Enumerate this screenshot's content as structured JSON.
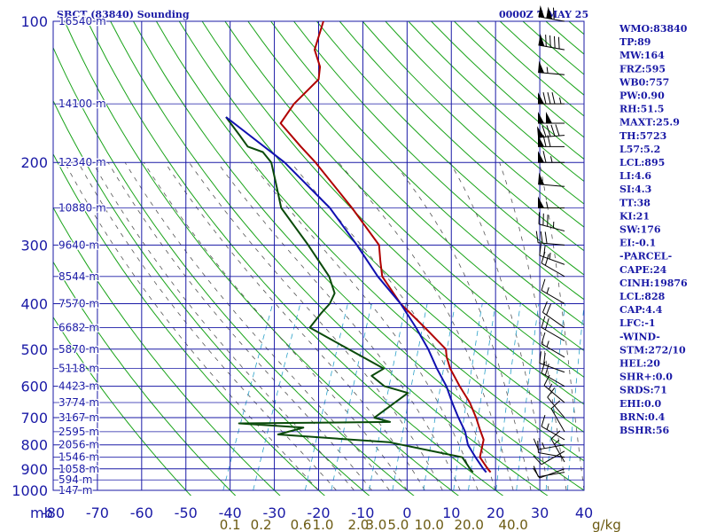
{
  "chart_data": {
    "type": "line",
    "title": "SBCT (83840) Sounding",
    "valid_time": "0000Z  7 MAY 25",
    "p_range": [
      1000,
      100
    ],
    "t_range": [
      -80,
      40
    ],
    "pressure_ticks": [
      {
        "p": 100,
        "label": "100"
      },
      {
        "p": 200,
        "label": "200"
      },
      {
        "p": 300,
        "label": "300"
      },
      {
        "p": 400,
        "label": "400"
      },
      {
        "p": 500,
        "label": "500"
      },
      {
        "p": 600,
        "label": "600"
      },
      {
        "p": 700,
        "label": "700"
      },
      {
        "p": 800,
        "label": "800"
      },
      {
        "p": 900,
        "label": "900"
      },
      {
        "p": 1000,
        "label": "1000"
      }
    ],
    "pressure_unit_label": "mb",
    "temperature_ticks": [
      {
        "t": -80,
        "label": "-80"
      },
      {
        "t": -70,
        "label": "-70"
      },
      {
        "t": -60,
        "label": "-60"
      },
      {
        "t": -50,
        "label": "-50"
      },
      {
        "t": -40,
        "label": "-40"
      },
      {
        "t": -30,
        "label": "-30"
      },
      {
        "t": -20,
        "label": "-20"
      },
      {
        "t": -10,
        "label": "-10"
      },
      {
        "t": 0,
        "label": "0"
      },
      {
        "t": 10,
        "label": "10"
      },
      {
        "t": 20,
        "label": "20"
      },
      {
        "t": 30,
        "label": "30"
      },
      {
        "t": 40,
        "label": "40"
      }
    ],
    "height_labels": [
      {
        "p": 100,
        "label": "16540 m"
      },
      {
        "p": 150,
        "label": "14100 m"
      },
      {
        "p": 200,
        "label": "12340 m"
      },
      {
        "p": 250,
        "label": "10880 m"
      },
      {
        "p": 300,
        "label": "9640 m"
      },
      {
        "p": 350,
        "label": "8544 m"
      },
      {
        "p": 400,
        "label": "7570 m"
      },
      {
        "p": 450,
        "label": "6682 m"
      },
      {
        "p": 500,
        "label": "5870 m"
      },
      {
        "p": 550,
        "label": "5118 m"
      },
      {
        "p": 600,
        "label": "4423 m"
      },
      {
        "p": 650,
        "label": "3774 m"
      },
      {
        "p": 700,
        "label": "3167 m"
      },
      {
        "p": 750,
        "label": "2595 m"
      },
      {
        "p": 800,
        "label": "2056 m"
      },
      {
        "p": 850,
        "label": "1546 m"
      },
      {
        "p": 900,
        "label": "1058 m"
      },
      {
        "p": 950,
        "label": "594 m"
      },
      {
        "p": 1000,
        "label": "147 m"
      }
    ],
    "mixing_ratio_labels": [
      {
        "t": -40,
        "label": "0.1"
      },
      {
        "t": -33,
        "label": "0.2"
      },
      {
        "t": -24,
        "label": "0.6"
      },
      {
        "t": -19,
        "label": "1.0"
      },
      {
        "t": -11,
        "label": "2.0"
      },
      {
        "t": -7,
        "label": "3.0"
      },
      {
        "t": -2,
        "label": "5.0"
      },
      {
        "t": 5,
        "label": "10.0"
      },
      {
        "t": 14,
        "label": "20.0"
      },
      {
        "t": 24,
        "label": "40.0"
      }
    ],
    "mixing_ratio_unit": "g/kg",
    "series": [
      {
        "color": "#b00000",
        "points": [
          {
            "p": 100,
            "t": -68
          },
          {
            "p": 115,
            "t": -67
          },
          {
            "p": 125,
            "t": -64
          },
          {
            "p": 133,
            "t": -63
          },
          {
            "p": 150,
            "t": -66
          },
          {
            "p": 165,
            "t": -67
          },
          {
            "p": 185,
            "t": -60
          },
          {
            "p": 200,
            "t": -55
          },
          {
            "p": 250,
            "t": -42
          },
          {
            "p": 300,
            "t": -32
          },
          {
            "p": 325,
            "t": -30
          },
          {
            "p": 350,
            "t": -28
          },
          {
            "p": 400,
            "t": -21
          },
          {
            "p": 450,
            "t": -13
          },
          {
            "p": 500,
            "t": -6
          },
          {
            "p": 520,
            "t": -5
          },
          {
            "p": 550,
            "t": -3
          },
          {
            "p": 600,
            "t": 1
          },
          {
            "p": 650,
            "t": 5
          },
          {
            "p": 700,
            "t": 8
          },
          {
            "p": 740,
            "t": 10
          },
          {
            "p": 780,
            "t": 12
          },
          {
            "p": 850,
            "t": 13
          },
          {
            "p": 900,
            "t": 16
          },
          {
            "p": 915,
            "t": 17
          }
        ]
      },
      {
        "color": "#0a4a0a",
        "points": [
          {
            "p": 160,
            "t": -80
          },
          {
            "p": 175,
            "t": -75
          },
          {
            "p": 185,
            "t": -72
          },
          {
            "p": 190,
            "t": -68
          },
          {
            "p": 200,
            "t": -65
          },
          {
            "p": 220,
            "t": -62
          },
          {
            "p": 250,
            "t": -58
          },
          {
            "p": 300,
            "t": -48
          },
          {
            "p": 350,
            "t": -40
          },
          {
            "p": 380,
            "t": -37
          },
          {
            "p": 400,
            "t": -37
          },
          {
            "p": 420,
            "t": -38
          },
          {
            "p": 450,
            "t": -39
          },
          {
            "p": 500,
            "t": -28
          },
          {
            "p": 550,
            "t": -18
          },
          {
            "p": 570,
            "t": -20
          },
          {
            "p": 600,
            "t": -16
          },
          {
            "p": 620,
            "t": -10
          },
          {
            "p": 700,
            "t": -15
          },
          {
            "p": 715,
            "t": -11
          },
          {
            "p": 720,
            "t": -45
          },
          {
            "p": 735,
            "t": -30
          },
          {
            "p": 760,
            "t": -35
          },
          {
            "p": 790,
            "t": -9
          },
          {
            "p": 850,
            "t": 9
          },
          {
            "p": 900,
            "t": 12
          },
          {
            "p": 915,
            "t": 13
          }
        ]
      },
      {
        "color": "#1010b0",
        "points": [
          {
            "p": 160,
            "t": -80
          },
          {
            "p": 200,
            "t": -62
          },
          {
            "p": 250,
            "t": -47
          },
          {
            "p": 300,
            "t": -37
          },
          {
            "p": 350,
            "t": -29
          },
          {
            "p": 400,
            "t": -21
          },
          {
            "p": 450,
            "t": -15
          },
          {
            "p": 500,
            "t": -10
          },
          {
            "p": 550,
            "t": -6
          },
          {
            "p": 600,
            "t": -2
          },
          {
            "p": 650,
            "t": 1
          },
          {
            "p": 700,
            "t": 4
          },
          {
            "p": 750,
            "t": 7
          },
          {
            "p": 800,
            "t": 9
          },
          {
            "p": 850,
            "t": 12
          },
          {
            "p": 900,
            "t": 15
          },
          {
            "p": 915,
            "t": 16
          }
        ]
      }
    ],
    "wind_barbs": [
      {
        "p": 100,
        "dir": 280,
        "spd": 110
      },
      {
        "p": 115,
        "dir": 280,
        "spd": 90
      },
      {
        "p": 130,
        "dir": 275,
        "spd": 55
      },
      {
        "p": 150,
        "dir": 270,
        "spd": 85
      },
      {
        "p": 165,
        "dir": 270,
        "spd": 100
      },
      {
        "p": 175,
        "dir": 265,
        "spd": 90
      },
      {
        "p": 185,
        "dir": 270,
        "spd": 70
      },
      {
        "p": 200,
        "dir": 270,
        "spd": 65
      },
      {
        "p": 225,
        "dir": 275,
        "spd": 50
      },
      {
        "p": 250,
        "dir": 270,
        "spd": 55
      },
      {
        "p": 280,
        "dir": 285,
        "spd": 35
      },
      {
        "p": 300,
        "dir": 275,
        "spd": 30
      },
      {
        "p": 330,
        "dir": 290,
        "spd": 25
      },
      {
        "p": 350,
        "dir": 300,
        "spd": 20
      },
      {
        "p": 400,
        "dir": 300,
        "spd": 15
      },
      {
        "p": 450,
        "dir": 305,
        "spd": 20
      },
      {
        "p": 480,
        "dir": 300,
        "spd": 20
      },
      {
        "p": 520,
        "dir": 300,
        "spd": 15
      },
      {
        "p": 560,
        "dir": 290,
        "spd": 20
      },
      {
        "p": 600,
        "dir": 300,
        "spd": 20
      },
      {
        "p": 650,
        "dir": 310,
        "spd": 15
      },
      {
        "p": 700,
        "dir": 320,
        "spd": 10
      },
      {
        "p": 750,
        "dir": 330,
        "spd": 10
      },
      {
        "p": 780,
        "dir": 300,
        "spd": 15
      },
      {
        "p": 800,
        "dir": 260,
        "spd": 15
      },
      {
        "p": 825,
        "dir": 240,
        "spd": 10
      },
      {
        "p": 850,
        "dir": 280,
        "spd": 10
      },
      {
        "p": 870,
        "dir": 330,
        "spd": 15
      },
      {
        "p": 900,
        "dir": 250,
        "spd": 10
      },
      {
        "p": 915,
        "dir": 260,
        "spd": 10
      }
    ]
  },
  "stats": [
    "WMO:83840",
    "TP:89",
    "MW:164",
    "FRZ:595",
    "WB0:757",
    "PW:0.90",
    "RH:51.5",
    "MAXT:25.9",
    "TH:5723",
    "L57:5.2",
    "LCL:895",
    "LI:4.6",
    "SI:4.3",
    "TT:38",
    "KI:21",
    "SW:176",
    "EI:-0.1",
    "-PARCEL-",
    "CAPE:24",
    "CINH:19876",
    "LCL:828",
    "CAP:4.4",
    "LFC:-1",
    "-WIND-",
    "STM:272/10",
    "HEL:20",
    "SHR+:0.0",
    "SRDS:71",
    "EHI:0.0",
    "BRN:0.4",
    "BSHR:56"
  ],
  "colors": {
    "axis": "#1a1aa6",
    "dry_adiabat": "#19a319",
    "moist_adiabat": "#555555",
    "mixing_ratio": "#2aa0c8",
    "mixing_ratio_label": "#6b5a12",
    "temperature": "#b00000",
    "dewpoint": "#0a4a0a",
    "parcel": "#1010b0",
    "barb": "#000000"
  }
}
